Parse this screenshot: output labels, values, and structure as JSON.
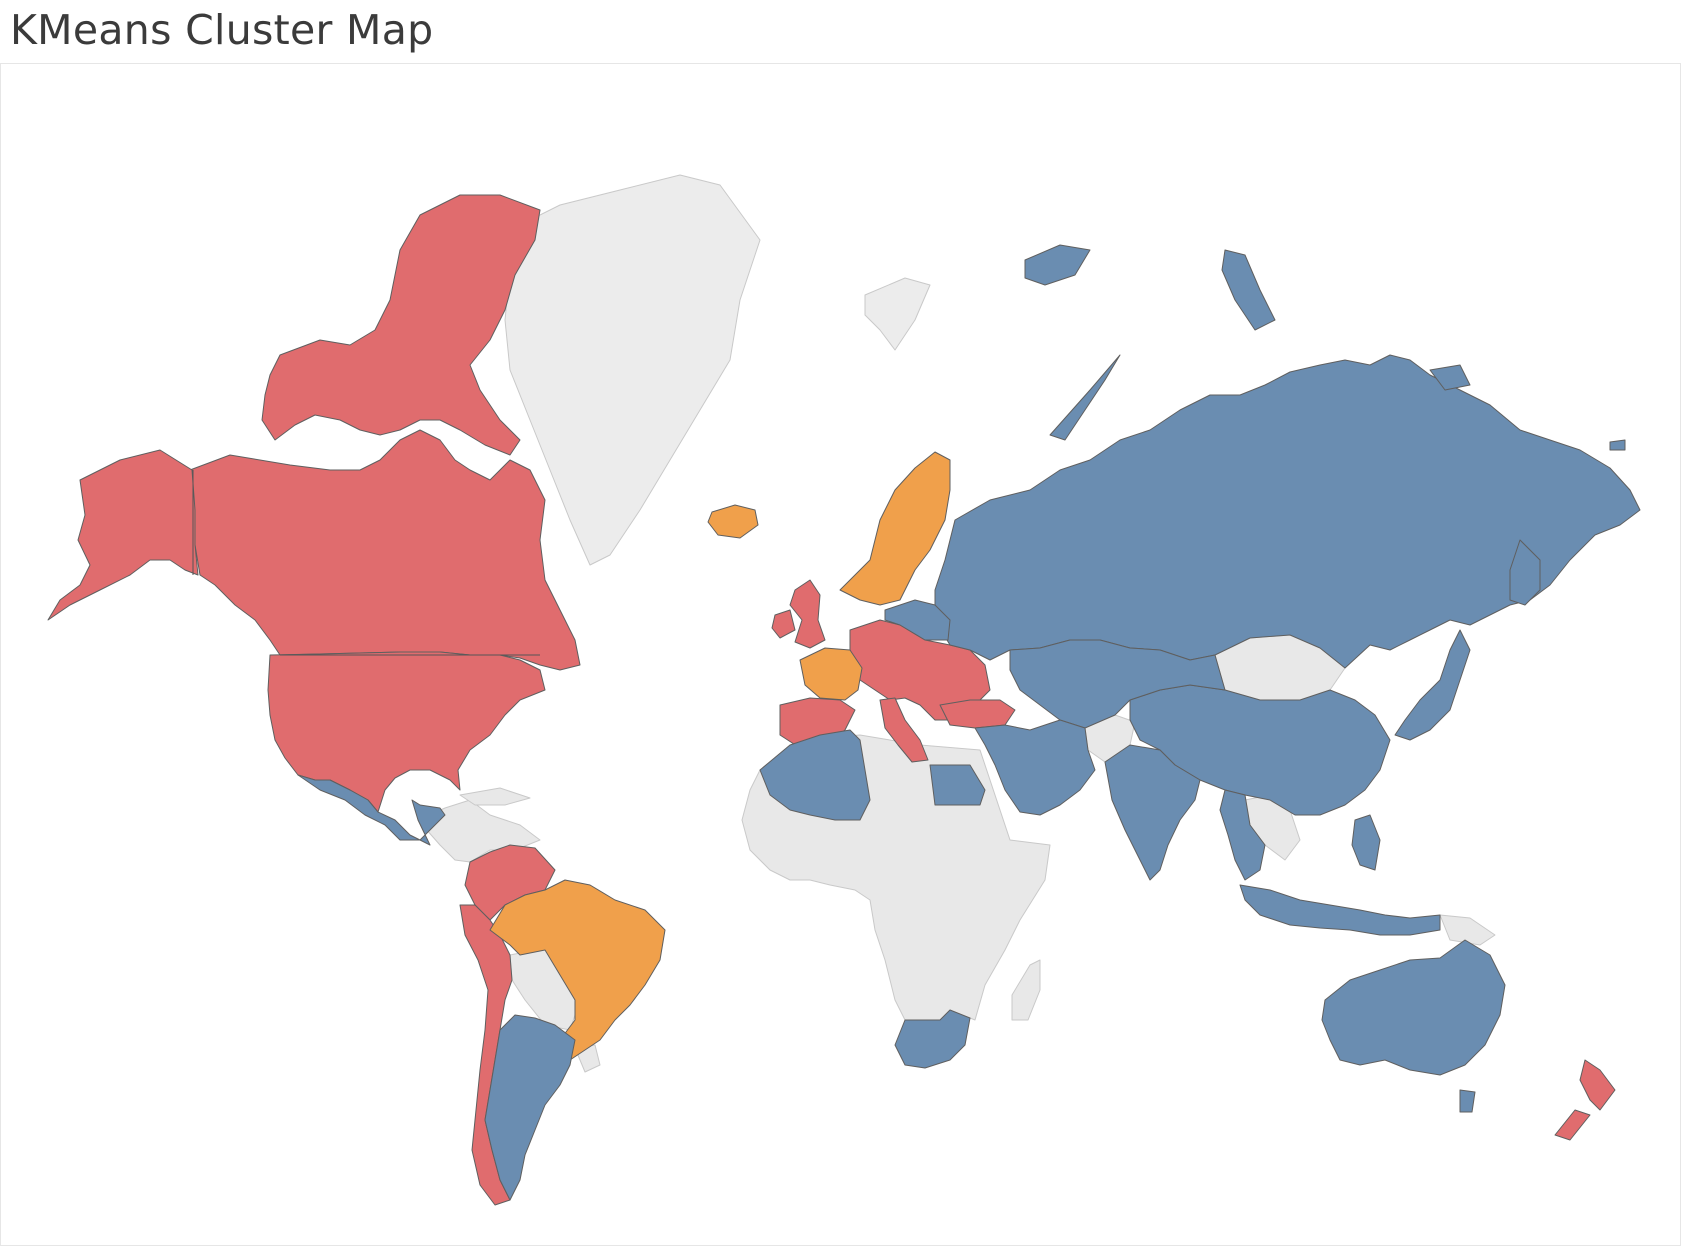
{
  "title": "KMeans Cluster Map",
  "colors": {
    "cluster_red": "#e06c6e",
    "cluster_blue": "#6a8db1",
    "cluster_orange": "#f0a04b",
    "no_data": "#e8e8e8",
    "border": "#5f5f5f",
    "title_text": "#3b3b3b"
  },
  "map": {
    "type": "choropleth world map",
    "legend": "none"
  }
}
